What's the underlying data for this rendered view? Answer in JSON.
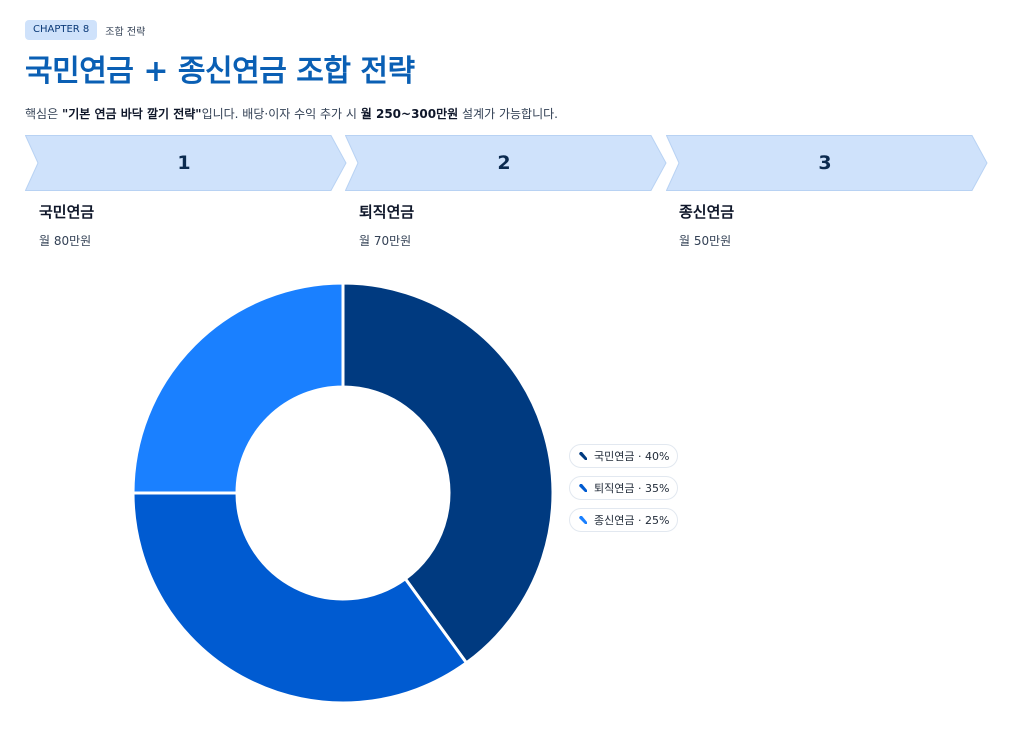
{
  "header": {
    "chapter": "CHAPTER 8",
    "section": "조합 전략",
    "title": "국민연금 + 종신연금 조합 전략",
    "subtitle_prefix": "핵심은 ",
    "subtitle_bold1": "\"기본 연금 바닥 깔기 전략\"",
    "subtitle_middle": "입니다. 배당·이자 수익 추가 시 ",
    "subtitle_bold2": "월 250~300만원",
    "subtitle_suffix": " 설계가 가능합니다."
  },
  "steps": [
    {
      "number": "1",
      "name": "국민연금",
      "amount": "월 80만원"
    },
    {
      "number": "2",
      "name": "퇴직연금",
      "amount": "월 70만원"
    },
    {
      "number": "3",
      "name": "종신연금",
      "amount": "월 50만원"
    }
  ],
  "colors": {
    "step_fill": "#cfe2fb",
    "step_stroke": "#b8d2f3",
    "series": [
      "#003a80",
      "#005bd1",
      "#1a80ff"
    ]
  },
  "chart_data": {
    "type": "pie",
    "variant": "donut",
    "categories": [
      "국민연금",
      "퇴직연금",
      "종신연금"
    ],
    "values": [
      40,
      35,
      25
    ],
    "unit": "%",
    "legend_labels": [
      "국민연금 · 40%",
      "퇴직연금 · 35%",
      "종신연금 · 25%"
    ],
    "legend_position": "right"
  }
}
